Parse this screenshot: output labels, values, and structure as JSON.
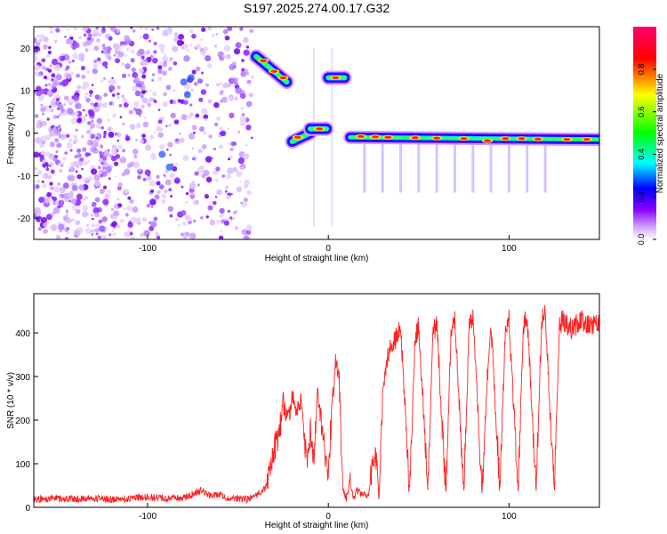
{
  "chart_data": [
    {
      "type": "heatmap",
      "title": "S197.2025.274.00.17.G32",
      "xlabel": "Height of straight line (km)",
      "ylabel": "Frequency (Hz)",
      "xlim": [
        -163,
        150
      ],
      "ylim": [
        -25,
        25
      ],
      "xticks": [
        -100,
        0,
        100
      ],
      "yticks": [
        -20,
        -10,
        0,
        10,
        20
      ],
      "colorbar": {
        "label": "Normalized spectral amplitude",
        "range": [
          0,
          1
        ],
        "ticks": [
          0.0,
          0.2,
          0.4,
          0.6,
          0.8
        ],
        "tick_labels": [
          "0.0",
          "0.2",
          "0.4",
          "0.6",
          "0.8"
        ],
        "colors": [
          "#ffffff",
          "#8a00ff",
          "#0000ff",
          "#00ffff",
          "#00ff00",
          "#ffff00",
          "#ff0000",
          "#ff00a0"
        ]
      },
      "features": [
        {
          "name": "diagonal-streak",
          "x_start": -40,
          "x_end": -23,
          "freq_start": 18,
          "freq_end": 12
        },
        {
          "name": "dip-segment-1",
          "x_start": -20,
          "x_end": -10,
          "freq_start": -2,
          "freq_end": 0
        },
        {
          "name": "dip-segment-2",
          "x_start": -10,
          "x_end": -1,
          "freq_start": 1,
          "freq_end": 1
        },
        {
          "name": "high-blob",
          "x_start": 0,
          "x_end": 9,
          "freq_start": 13,
          "freq_end": 13
        },
        {
          "name": "flat-line",
          "x_start": 12,
          "x_end": 150,
          "freq_start": -1,
          "freq_end": -1.5
        }
      ],
      "noise_region": {
        "x_start": -163,
        "x_end": -42,
        "freq_range": [
          -25,
          25
        ]
      }
    },
    {
      "type": "line",
      "xlabel": "Height of straight line (km)",
      "ylabel": "SNR (10 * v/v)",
      "xlim": [
        -163,
        150
      ],
      "ylim": [
        0,
        490
      ],
      "xticks": [
        -100,
        0,
        100
      ],
      "yticks": [
        0,
        100,
        200,
        300,
        400
      ],
      "series": [
        {
          "name": "SNR",
          "color": "#ff2020",
          "x": [
            -163,
            -150,
            -140,
            -130,
            -120,
            -110,
            -100,
            -90,
            -80,
            -75,
            -70,
            -65,
            -60,
            -55,
            -50,
            -45,
            -40,
            -35,
            -30,
            -27,
            -25,
            -22,
            -20,
            -17,
            -15,
            -12,
            -10,
            -8,
            -6,
            -4,
            -2,
            0,
            2,
            4,
            6,
            8,
            10,
            12,
            14,
            16,
            18,
            20,
            22,
            24,
            26,
            28,
            30,
            32,
            35,
            38,
            40,
            45,
            48,
            50,
            55,
            58,
            60,
            65,
            68,
            70,
            75,
            78,
            80,
            85,
            88,
            90,
            95,
            98,
            100,
            105,
            108,
            110,
            115,
            118,
            120,
            125,
            128,
            130,
            135,
            140,
            145,
            150
          ],
          "y": [
            18,
            20,
            19,
            21,
            18,
            20,
            24,
            20,
            22,
            30,
            40,
            25,
            30,
            18,
            20,
            18,
            25,
            45,
            130,
            180,
            240,
            200,
            260,
            220,
            240,
            110,
            170,
            120,
            260,
            200,
            120,
            70,
            240,
            330,
            290,
            40,
            20,
            60,
            20,
            40,
            30,
            30,
            25,
            80,
            140,
            20,
            250,
            330,
            380,
            390,
            410,
            40,
            380,
            420,
            40,
            400,
            420,
            35,
            410,
            430,
            40,
            420,
            440,
            30,
            300,
            420,
            40,
            410,
            430,
            40,
            420,
            440,
            40,
            430,
            440,
            40,
            420,
            430,
            410,
            430,
            420,
            425
          ]
        }
      ]
    }
  ]
}
